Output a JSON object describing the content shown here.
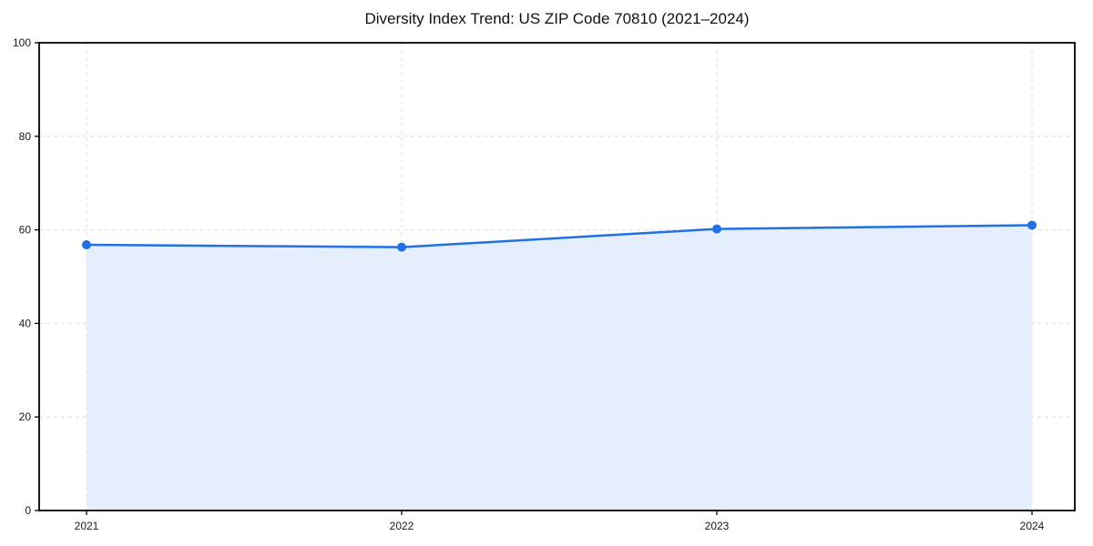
{
  "chart_data": {
    "type": "line",
    "title": "Diversity Index Trend: US ZIP Code 70810 (2021–2024)",
    "categories": [
      "2021",
      "2022",
      "2023",
      "2024"
    ],
    "series": [
      {
        "name": "Diversity Index",
        "values": [
          56.8,
          56.3,
          60.2,
          61.0
        ]
      }
    ],
    "xlabel": "",
    "ylabel": "",
    "ylim": [
      0,
      100
    ],
    "yticks": [
      0,
      20,
      40,
      60,
      80,
      100
    ],
    "grid": "dashed-both-axes",
    "legend": "none",
    "area_fill": true,
    "marker": "circle",
    "colors": {
      "line": "#2170e4",
      "marker": "#2170e4",
      "fill": "#e4eefc",
      "grid": "#dcdcdc",
      "spine": "#000000",
      "tick_label": "#1a1a1a",
      "background": "#ffffff"
    }
  }
}
